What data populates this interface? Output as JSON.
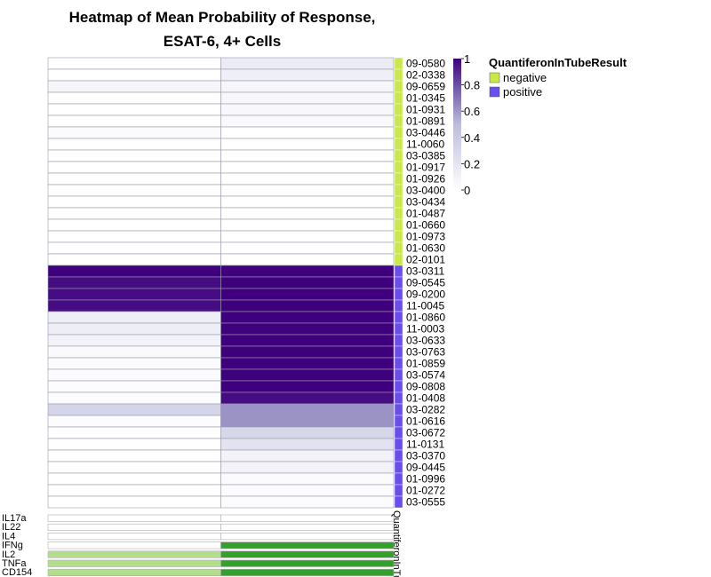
{
  "chart_data": {
    "type": "heatmap",
    "title": [
      "Heatmap of Mean Probability of Response,",
      "ESAT-6, 4+ Cells"
    ],
    "rows": [
      "09-0580",
      "02-0338",
      "09-0659",
      "01-0345",
      "01-0931",
      "01-0891",
      "03-0446",
      "11-0060",
      "03-0385",
      "01-0917",
      "01-0926",
      "03-0400",
      "03-0434",
      "01-0487",
      "01-0660",
      "01-0973",
      "01-0630",
      "02-0101",
      "03-0311",
      "09-0545",
      "09-0200",
      "11-0045",
      "01-0860",
      "11-0003",
      "03-0633",
      "03-0763",
      "01-0859",
      "03-0574",
      "09-0808",
      "01-0408",
      "03-0282",
      "01-0616",
      "03-0672",
      "11-0131",
      "03-0370",
      "09-0445",
      "01-0996",
      "01-0272",
      "03-0555"
    ],
    "values": [
      [
        0,
        0.15
      ],
      [
        0,
        0.12
      ],
      [
        0.07,
        0.06
      ],
      [
        0,
        0.06
      ],
      [
        0,
        0.05
      ],
      [
        0,
        0.04
      ],
      [
        0.03,
        0
      ],
      [
        0,
        0
      ],
      [
        0,
        0
      ],
      [
        0,
        0
      ],
      [
        0,
        0
      ],
      [
        0,
        0
      ],
      [
        0,
        0
      ],
      [
        0,
        0
      ],
      [
        0,
        0
      ],
      [
        0,
        0
      ],
      [
        0,
        0
      ],
      [
        0,
        0
      ],
      [
        1,
        1
      ],
      [
        0.97,
        1
      ],
      [
        0.97,
        1
      ],
      [
        0.97,
        1
      ],
      [
        0.13,
        1
      ],
      [
        0.13,
        1
      ],
      [
        0.1,
        1
      ],
      [
        0.04,
        1
      ],
      [
        0.03,
        1
      ],
      [
        0.03,
        1
      ],
      [
        0.02,
        1
      ],
      [
        0.02,
        0.97
      ],
      [
        0.32,
        0.62
      ],
      [
        0.02,
        0.62
      ],
      [
        0,
        0.3
      ],
      [
        0,
        0.22
      ],
      [
        0,
        0.1
      ],
      [
        0,
        0.1
      ],
      [
        0,
        0.03
      ],
      [
        0,
        0.02
      ],
      [
        0,
        0.02
      ]
    ],
    "group_labels": [
      "negative",
      "negative",
      "negative",
      "negative",
      "negative",
      "negative",
      "negative",
      "negative",
      "negative",
      "negative",
      "negative",
      "negative",
      "negative",
      "negative",
      "negative",
      "negative",
      "negative",
      "negative",
      "positive",
      "positive",
      "positive",
      "positive",
      "positive",
      "positive",
      "positive",
      "positive",
      "positive",
      "positive",
      "positive",
      "positive",
      "positive",
      "positive",
      "positive",
      "positive",
      "positive",
      "positive",
      "positive",
      "positive",
      "positive"
    ],
    "annotation_title": "QuantiferonInTubeResult",
    "annotation_axis_label": "QuantiferonInTu",
    "groups": [
      {
        "name": "negative",
        "color": "#c9e84a"
      },
      {
        "name": "positive",
        "color": "#6a4ded"
      }
    ],
    "colorbar": {
      "ticks": [
        "1",
        "0.8",
        "0.6",
        "0.4",
        "0.2",
        "0"
      ],
      "min": 0,
      "max": 1,
      "low_color": "#ffffff",
      "high_color": "#3f007d"
    },
    "cytokines": [
      "IL17a",
      "IL22",
      "IL4",
      "IFNg",
      "IL2",
      "TNFa",
      "CD154"
    ],
    "cytokine_matrix": [
      [
        0,
        0
      ],
      [
        0,
        0
      ],
      [
        0,
        0
      ],
      [
        0,
        1
      ],
      [
        0.5,
        1
      ],
      [
        0.5,
        1
      ],
      [
        0.5,
        1
      ]
    ],
    "cytokine_colors": {
      "off": "#ffffff",
      "partial": "#b2df8a",
      "on": "#33a02c"
    }
  }
}
